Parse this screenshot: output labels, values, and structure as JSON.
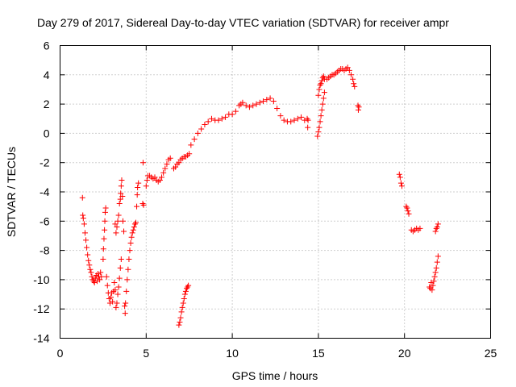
{
  "chart_data": {
    "type": "scatter",
    "title": "Day 279 of 2017, Sidereal Day-to-day VTEC variation (SDTVAR) for receiver ampr",
    "xlabel": "GPS time / hours",
    "ylabel": "SDTVAR / TECUs",
    "xlim": [
      0,
      25
    ],
    "ylim": [
      -14,
      6
    ],
    "xticks": [
      0,
      5,
      10,
      15,
      20,
      25
    ],
    "yticks": [
      -14,
      -12,
      -10,
      -8,
      -6,
      -4,
      -2,
      0,
      2,
      4,
      6
    ],
    "grid": true,
    "marker": "+",
    "color": "#ff0000",
    "series": [
      {
        "name": "SDTVAR",
        "points": [
          [
            1.3,
            -4.4
          ],
          [
            1.32,
            -5.6
          ],
          [
            1.35,
            -5.8
          ],
          [
            1.4,
            -6.2
          ],
          [
            1.45,
            -6.8
          ],
          [
            1.5,
            -7.3
          ],
          [
            1.55,
            -7.8
          ],
          [
            1.6,
            -8.3
          ],
          [
            1.65,
            -8.7
          ],
          [
            1.7,
            -9.0
          ],
          [
            1.75,
            -9.3
          ],
          [
            1.8,
            -9.5
          ],
          [
            1.85,
            -9.8
          ],
          [
            1.9,
            -10.0
          ],
          [
            1.95,
            -10.1
          ],
          [
            2.0,
            -10.2
          ],
          [
            2.05,
            -9.9
          ],
          [
            2.1,
            -9.7
          ],
          [
            2.15,
            -10.1
          ],
          [
            2.2,
            -9.6
          ],
          [
            2.25,
            -9.8
          ],
          [
            2.3,
            -10.0
          ],
          [
            2.35,
            -9.5
          ],
          [
            2.4,
            -9.8
          ],
          [
            2.5,
            -8.6
          ],
          [
            2.52,
            -7.9
          ],
          [
            2.55,
            -7.2
          ],
          [
            2.58,
            -6.6
          ],
          [
            2.6,
            -6.0
          ],
          [
            2.62,
            -5.4
          ],
          [
            2.65,
            -5.1
          ],
          [
            2.7,
            -9.8
          ],
          [
            2.75,
            -10.4
          ],
          [
            2.8,
            -10.9
          ],
          [
            2.85,
            -11.3
          ],
          [
            2.9,
            -11.6
          ],
          [
            2.95,
            -11.2
          ],
          [
            3.0,
            -10.9
          ],
          [
            3.05,
            -11.5
          ],
          [
            3.1,
            -10.8
          ],
          [
            3.15,
            -10.2
          ],
          [
            3.2,
            -10.7
          ],
          [
            3.25,
            -11.9
          ],
          [
            3.3,
            -11.6
          ],
          [
            3.35,
            -11.0
          ],
          [
            3.4,
            -10.5
          ],
          [
            3.45,
            -9.9
          ],
          [
            3.5,
            -9.2
          ],
          [
            3.55,
            -8.6
          ],
          [
            3.2,
            -6.2
          ],
          [
            3.25,
            -6.8
          ],
          [
            3.3,
            -6.4
          ],
          [
            3.35,
            -6.0
          ],
          [
            3.4,
            -5.6
          ],
          [
            3.45,
            -4.8
          ],
          [
            3.5,
            -4.5
          ],
          [
            3.52,
            -4.1
          ],
          [
            3.55,
            -3.6
          ],
          [
            3.58,
            -3.2
          ],
          [
            3.62,
            -4.3
          ],
          [
            3.65,
            -6.0
          ],
          [
            3.7,
            -6.7
          ],
          [
            3.75,
            -11.8
          ],
          [
            3.78,
            -12.3
          ],
          [
            3.8,
            -11.6
          ],
          [
            3.85,
            -10.8
          ],
          [
            3.9,
            -10.0
          ],
          [
            3.95,
            -9.3
          ],
          [
            4.0,
            -8.6
          ],
          [
            4.05,
            -8.0
          ],
          [
            4.1,
            -7.5
          ],
          [
            4.15,
            -7.1
          ],
          [
            4.2,
            -6.8
          ],
          [
            4.25,
            -6.6
          ],
          [
            4.3,
            -6.4
          ],
          [
            4.35,
            -6.2
          ],
          [
            4.4,
            -6.1
          ],
          [
            4.45,
            -5.0
          ],
          [
            4.48,
            -4.2
          ],
          [
            4.5,
            -3.7
          ],
          [
            4.55,
            -3.4
          ],
          [
            4.8,
            -4.8
          ],
          [
            4.85,
            -4.9
          ],
          [
            4.82,
            -2.0
          ],
          [
            5.0,
            -3.6
          ],
          [
            5.05,
            -3.2
          ],
          [
            5.1,
            -2.9
          ],
          [
            5.2,
            -2.9
          ],
          [
            5.3,
            -3.0
          ],
          [
            5.4,
            -3.1
          ],
          [
            5.5,
            -3.0
          ],
          [
            5.6,
            -3.2
          ],
          [
            5.7,
            -3.3
          ],
          [
            5.8,
            -3.2
          ],
          [
            5.9,
            -3.0
          ],
          [
            6.0,
            -2.7
          ],
          [
            6.1,
            -2.4
          ],
          [
            6.2,
            -2.1
          ],
          [
            6.3,
            -1.8
          ],
          [
            6.4,
            -1.7
          ],
          [
            6.6,
            -2.4
          ],
          [
            6.7,
            -2.3
          ],
          [
            6.8,
            -2.1
          ],
          [
            6.9,
            -2.0
          ],
          [
            7.0,
            -1.8
          ],
          [
            7.1,
            -1.7
          ],
          [
            7.2,
            -1.6
          ],
          [
            7.3,
            -1.6
          ],
          [
            7.4,
            -1.5
          ],
          [
            7.5,
            -1.4
          ],
          [
            6.9,
            -13.1
          ],
          [
            6.95,
            -12.9
          ],
          [
            7.0,
            -12.6
          ],
          [
            7.05,
            -12.2
          ],
          [
            7.1,
            -11.9
          ],
          [
            7.15,
            -11.6
          ],
          [
            7.2,
            -11.3
          ],
          [
            7.25,
            -11.0
          ],
          [
            7.3,
            -10.8
          ],
          [
            7.35,
            -10.6
          ],
          [
            7.4,
            -10.5
          ],
          [
            7.45,
            -10.4
          ],
          [
            7.6,
            -0.8
          ],
          [
            7.8,
            -0.4
          ],
          [
            8.0,
            0.0
          ],
          [
            8.2,
            0.3
          ],
          [
            8.4,
            0.6
          ],
          [
            8.6,
            0.8
          ],
          [
            8.8,
            1.0
          ],
          [
            9.0,
            0.9
          ],
          [
            9.2,
            0.9
          ],
          [
            9.4,
            1.0
          ],
          [
            9.6,
            1.1
          ],
          [
            9.8,
            1.3
          ],
          [
            10.0,
            1.3
          ],
          [
            10.2,
            1.5
          ],
          [
            10.4,
            1.9
          ],
          [
            10.5,
            2.0
          ],
          [
            10.6,
            2.1
          ],
          [
            10.8,
            1.9
          ],
          [
            11.0,
            1.8
          ],
          [
            11.2,
            1.9
          ],
          [
            11.4,
            2.0
          ],
          [
            11.6,
            2.1
          ],
          [
            11.8,
            2.2
          ],
          [
            12.0,
            2.3
          ],
          [
            12.2,
            2.4
          ],
          [
            12.4,
            2.2
          ],
          [
            12.6,
            1.7
          ],
          [
            12.8,
            1.2
          ],
          [
            13.0,
            0.9
          ],
          [
            13.2,
            0.8
          ],
          [
            13.4,
            0.8
          ],
          [
            13.6,
            0.9
          ],
          [
            13.8,
            1.0
          ],
          [
            14.0,
            1.1
          ],
          [
            14.2,
            0.9
          ],
          [
            14.35,
            1.0
          ],
          [
            14.4,
            0.9
          ],
          [
            14.38,
            0.4
          ],
          [
            14.95,
            -0.2
          ],
          [
            15.0,
            0.1
          ],
          [
            15.05,
            0.4
          ],
          [
            15.1,
            0.8
          ],
          [
            15.15,
            1.2
          ],
          [
            15.2,
            1.6
          ],
          [
            15.25,
            2.0
          ],
          [
            15.3,
            2.4
          ],
          [
            15.35,
            2.8
          ],
          [
            15.0,
            2.6
          ],
          [
            15.05,
            3.0
          ],
          [
            15.1,
            3.3
          ],
          [
            15.15,
            3.4
          ],
          [
            15.2,
            3.6
          ],
          [
            15.25,
            3.8
          ],
          [
            15.3,
            3.9
          ],
          [
            15.35,
            3.7
          ],
          [
            15.5,
            3.7
          ],
          [
            15.6,
            3.8
          ],
          [
            15.7,
            3.9
          ],
          [
            15.8,
            4.0
          ],
          [
            15.9,
            4.0
          ],
          [
            16.0,
            4.1
          ],
          [
            16.1,
            4.2
          ],
          [
            16.2,
            4.3
          ],
          [
            16.3,
            4.4
          ],
          [
            16.4,
            4.4
          ],
          [
            16.5,
            4.3
          ],
          [
            16.6,
            4.4
          ],
          [
            16.7,
            4.5
          ],
          [
            16.8,
            4.3
          ],
          [
            16.9,
            4.0
          ],
          [
            17.0,
            3.7
          ],
          [
            17.05,
            3.4
          ],
          [
            17.1,
            3.2
          ],
          [
            17.3,
            1.9
          ],
          [
            17.32,
            1.6
          ],
          [
            17.35,
            1.8
          ],
          [
            19.7,
            -2.8
          ],
          [
            19.75,
            -3.0
          ],
          [
            19.8,
            -3.4
          ],
          [
            19.85,
            -3.6
          ],
          [
            20.1,
            -5.0
          ],
          [
            20.15,
            -5.1
          ],
          [
            20.2,
            -5.3
          ],
          [
            20.25,
            -5.5
          ],
          [
            20.4,
            -6.6
          ],
          [
            20.5,
            -6.7
          ],
          [
            20.6,
            -6.6
          ],
          [
            20.7,
            -6.5
          ],
          [
            20.8,
            -6.6
          ],
          [
            20.9,
            -6.5
          ],
          [
            21.45,
            -10.5
          ],
          [
            21.5,
            -10.6
          ],
          [
            21.55,
            -10.2
          ],
          [
            21.6,
            -10.7
          ],
          [
            21.65,
            -10.4
          ],
          [
            21.7,
            -10.1
          ],
          [
            21.75,
            -9.8
          ],
          [
            21.8,
            -9.5
          ],
          [
            21.85,
            -9.2
          ],
          [
            21.9,
            -8.8
          ],
          [
            21.95,
            -8.4
          ],
          [
            21.8,
            -6.7
          ],
          [
            21.85,
            -6.5
          ],
          [
            21.9,
            -6.4
          ],
          [
            21.95,
            -6.2
          ]
        ]
      }
    ]
  }
}
